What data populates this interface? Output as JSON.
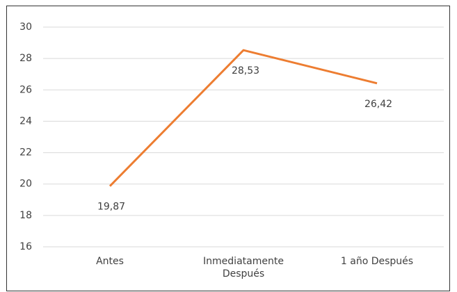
{
  "chart_data": {
    "type": "line",
    "categories": [
      "Antes",
      "Inmediatamente Después",
      "1 año Después"
    ],
    "series": [
      {
        "name": null,
        "color": "#ed7d31",
        "values": [
          19.87,
          28.53,
          26.42
        ],
        "value_labels": [
          "19,87",
          "28,53",
          "26,42"
        ]
      }
    ],
    "ylim": [
      16,
      30
    ],
    "yticks": [
      16,
      18,
      20,
      22,
      24,
      26,
      28,
      30
    ],
    "grid": true
  }
}
